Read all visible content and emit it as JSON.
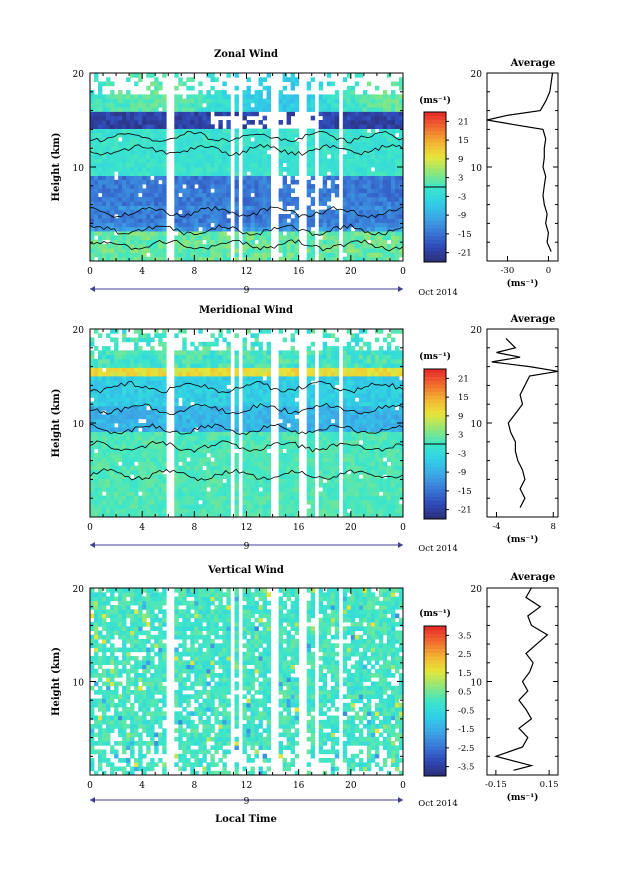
{
  "colors": {
    "colormap": [
      "#2b2e73",
      "#2f48b6",
      "#3a78d6",
      "#3da8e6",
      "#2fd0e6",
      "#3ee6c8",
      "#8fe67a",
      "#e6e63a",
      "#f2b233",
      "#f06a2e",
      "#e5292b"
    ],
    "contour": "#000000",
    "axis": "#000000"
  },
  "shared": {
    "height_ticks": [
      "20",
      "10"
    ],
    "height_label": "Height (km)",
    "time_ticks": [
      "0",
      "4",
      "8",
      "12",
      "16",
      "20",
      "0"
    ],
    "day_label": "9",
    "date_label": "Oct 2014",
    "unit_label": "(ms⁻¹)",
    "profile_unit": "(ms⁻¹)",
    "average_title": "Average",
    "xlabel": "Local Time"
  },
  "chart_data": [
    {
      "type": "heatmap",
      "title": "Zonal Wind",
      "x_range": [
        0,
        24
      ],
      "y_range": [
        0,
        20
      ],
      "colorbar_ticks": [
        "21",
        "15",
        "9",
        "3",
        "-3",
        "-9",
        "-15",
        "-21"
      ],
      "colorbar_range": [
        -24,
        24
      ],
      "average_profile": {
        "x_ticks": [
          "-30",
          "0"
        ],
        "x_range": [
          -45,
          7
        ],
        "heights": [
          1,
          2,
          3,
          4,
          5,
          6,
          7,
          8,
          9,
          10,
          11,
          12,
          13,
          14,
          14.5,
          15,
          15.5,
          16,
          17,
          18,
          19,
          20
        ],
        "values": [
          2,
          -1,
          0,
          -2,
          -1,
          -3,
          -4,
          -3,
          -2,
          -4,
          -3,
          -3,
          -2,
          -4,
          -25,
          -45,
          -30,
          -6,
          -2,
          1,
          2,
          3
        ]
      }
    },
    {
      "type": "heatmap",
      "title": "Meridional Wind",
      "x_range": [
        0,
        24
      ],
      "y_range": [
        0,
        20
      ],
      "colorbar_ticks": [
        "21",
        "15",
        "9",
        "3",
        "-3",
        "-9",
        "-15",
        "-21"
      ],
      "colorbar_range": [
        -24,
        24
      ],
      "average_profile": {
        "x_ticks": [
          "-4",
          "8"
        ],
        "x_range": [
          -6,
          9
        ],
        "heights": [
          1,
          2,
          3,
          4,
          5,
          6,
          7,
          8,
          9,
          10,
          11,
          12,
          13,
          14,
          15,
          15.5,
          16,
          16.5,
          17,
          17.5,
          18,
          19
        ],
        "values": [
          1,
          2,
          1,
          2,
          1.5,
          0.5,
          0,
          0,
          -1,
          -1.5,
          0,
          1.5,
          1,
          2,
          3,
          9,
          3,
          -5,
          1,
          -4,
          0,
          -2
        ]
      }
    },
    {
      "type": "heatmap",
      "title": "Vertical Wind",
      "x_range": [
        0,
        24
      ],
      "y_range": [
        0,
        20
      ],
      "colorbar_ticks": [
        "3.5",
        "2.5",
        "1.5",
        "0.5",
        "-0.5",
        "-1.5",
        "-2.5",
        "-3.5"
      ],
      "colorbar_range": [
        -4,
        4
      ],
      "average_profile": {
        "x_ticks": [
          "-0.15",
          "0.15"
        ],
        "x_range": [
          -0.2,
          0.2
        ],
        "heights": [
          0.5,
          1,
          2,
          3,
          4,
          5,
          6,
          7,
          8,
          9,
          10,
          11,
          12,
          13,
          14,
          15,
          16,
          17,
          18,
          19,
          20
        ],
        "values": [
          -0.05,
          0.05,
          -0.15,
          0.0,
          0.03,
          -0.02,
          0.05,
          0.02,
          -0.02,
          0.03,
          0.0,
          0.04,
          0.06,
          0.02,
          0.08,
          0.14,
          0.05,
          0.03,
          0.1,
          0.02,
          0.05
        ]
      }
    }
  ]
}
